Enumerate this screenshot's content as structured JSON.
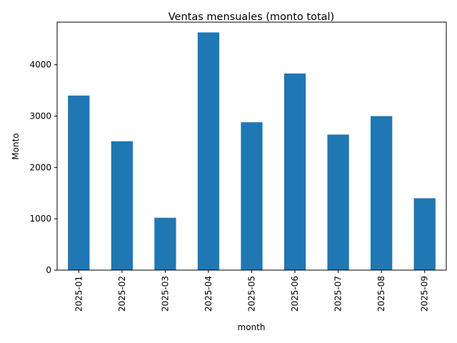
{
  "chart_data": {
    "type": "bar",
    "title": "Ventas mensuales (monto total)",
    "xlabel": "month",
    "ylabel": "Monto",
    "categories": [
      "2025-01",
      "2025-02",
      "2025-03",
      "2025-04",
      "2025-05",
      "2025-06",
      "2025-07",
      "2025-08",
      "2025-09"
    ],
    "values": [
      3400,
      2510,
      1020,
      4630,
      2880,
      3830,
      2640,
      3000,
      1400
    ],
    "yticks": [
      0,
      1000,
      2000,
      3000,
      4000
    ],
    "ylim": [
      0,
      4830
    ],
    "grid": false,
    "legend": "none",
    "bar_color": "#1f77b4"
  }
}
